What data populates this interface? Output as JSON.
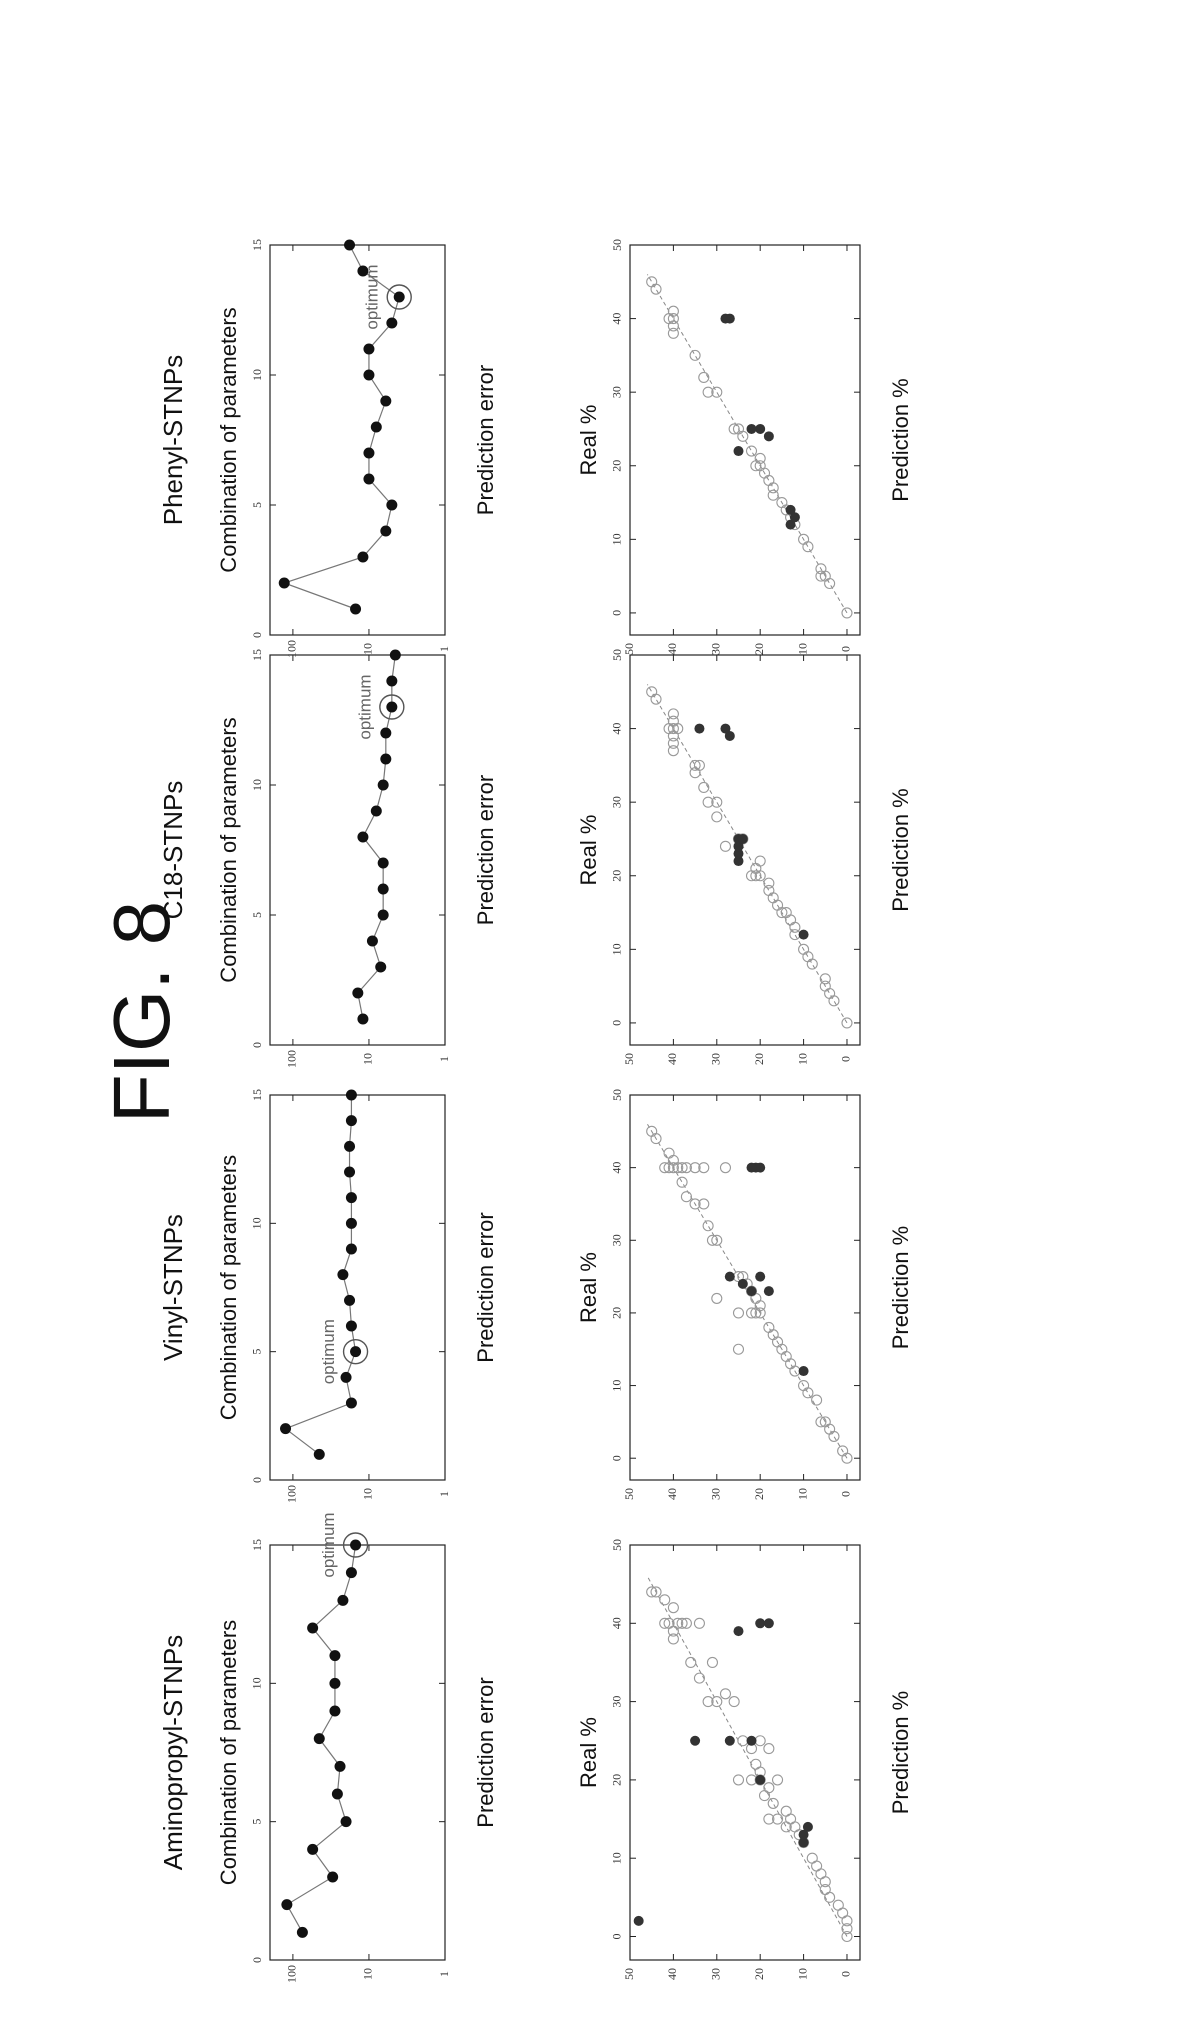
{
  "figure_title": "FIG. 8",
  "optimum_label": "optimum",
  "chart_data": [
    {
      "type": "line",
      "title": "Aminopropyl-STNPs",
      "xlabel": "Combination of parameters",
      "ylabel": "Prediction error",
      "xlim": [
        0,
        15
      ],
      "ylim": [
        1,
        200
      ],
      "yscale": "log",
      "xticks": [
        "0",
        "5",
        "10",
        "15"
      ],
      "yticks": [
        "1",
        "10",
        "100"
      ],
      "x": [
        1,
        2,
        3,
        4,
        5,
        6,
        7,
        8,
        9,
        10,
        11,
        12,
        13,
        14,
        15
      ],
      "y": [
        75,
        120,
        30,
        55,
        20,
        26,
        24,
        45,
        28,
        28,
        28,
        55,
        22,
        17,
        15
      ],
      "optimum_x": 15
    },
    {
      "type": "line",
      "title": "Vinyl-STNPs",
      "xlabel": "Combination of parameters",
      "ylabel": "Prediction error",
      "xlim": [
        0,
        15
      ],
      "ylim": [
        1,
        200
      ],
      "yscale": "log",
      "xticks": [
        "0",
        "5",
        "10",
        "15"
      ],
      "yticks": [
        "1",
        "10",
        "100"
      ],
      "x": [
        1,
        2,
        3,
        4,
        5,
        6,
        7,
        8,
        9,
        10,
        11,
        12,
        13,
        14,
        15
      ],
      "y": [
        45,
        125,
        17,
        20,
        15,
        17,
        18,
        22,
        17,
        17,
        17,
        18,
        18,
        17,
        17
      ],
      "optimum_x": 5
    },
    {
      "type": "line",
      "title": "C18-STNPs",
      "xlabel": "Combination of parameters",
      "ylabel": "Prediction error",
      "xlim": [
        0,
        15
      ],
      "ylim": [
        1,
        200
      ],
      "yscale": "log",
      "xticks": [
        "0",
        "5",
        "10",
        "15"
      ],
      "yticks": [
        "1",
        "10",
        "100"
      ],
      "x": [
        1,
        2,
        3,
        4,
        5,
        6,
        7,
        8,
        9,
        10,
        11,
        12,
        13,
        14,
        15
      ],
      "y": [
        12,
        14,
        7,
        9,
        6.5,
        6.5,
        6.5,
        12,
        8,
        6.5,
        6,
        6,
        5,
        5,
        4.5
      ],
      "optimum_x": 13
    },
    {
      "type": "line",
      "title": "Phenyl-STNPs",
      "xlabel": "Combination of parameters",
      "ylabel": "Prediction error",
      "xlim": [
        0,
        15
      ],
      "ylim": [
        1,
        200
      ],
      "yscale": "log",
      "xticks": [
        "0",
        "5",
        "10",
        "15"
      ],
      "yticks": [
        "1",
        "10",
        "100"
      ],
      "x": [
        1,
        2,
        3,
        4,
        5,
        6,
        7,
        8,
        9,
        10,
        11,
        12,
        13,
        14,
        15
      ],
      "y": [
        15,
        130,
        12,
        6,
        5,
        10,
        10,
        8,
        6,
        10,
        10,
        5,
        4,
        12,
        18
      ],
      "optimum_x": 13
    },
    {
      "type": "scatter",
      "xlabel": "Real %",
      "ylabel": "Prediction %",
      "xlim": [
        -3,
        50
      ],
      "ylim": [
        -3,
        50
      ],
      "xticks": [
        "0",
        "10",
        "20",
        "30",
        "40",
        "50"
      ],
      "yticks": [
        "0",
        "10",
        "20",
        "30",
        "40",
        "50"
      ],
      "open_points": [
        [
          0,
          0
        ],
        [
          1,
          0
        ],
        [
          2,
          0
        ],
        [
          3,
          1
        ],
        [
          4,
          2
        ],
        [
          5,
          4
        ],
        [
          6,
          5
        ],
        [
          7,
          5
        ],
        [
          8,
          6
        ],
        [
          9,
          7
        ],
        [
          10,
          8
        ],
        [
          12,
          10
        ],
        [
          13,
          11
        ],
        [
          14,
          12
        ],
        [
          14,
          14
        ],
        [
          15,
          13
        ],
        [
          15,
          16
        ],
        [
          15,
          18
        ],
        [
          16,
          14
        ],
        [
          17,
          17
        ],
        [
          18,
          19
        ],
        [
          19,
          18
        ],
        [
          20,
          16
        ],
        [
          20,
          20
        ],
        [
          20,
          22
        ],
        [
          21,
          20
        ],
        [
          22,
          21
        ],
        [
          24,
          22
        ],
        [
          25,
          24
        ],
        [
          25,
          20
        ],
        [
          24,
          18
        ],
        [
          20,
          25
        ],
        [
          30,
          26
        ],
        [
          30,
          30
        ],
        [
          30,
          32
        ],
        [
          31,
          28
        ],
        [
          33,
          34
        ],
        [
          35,
          36
        ],
        [
          35,
          31
        ],
        [
          38,
          40
        ],
        [
          39,
          40
        ],
        [
          40,
          41
        ],
        [
          40,
          42
        ],
        [
          40,
          39
        ],
        [
          40,
          38
        ],
        [
          40,
          37
        ],
        [
          40,
          34
        ],
        [
          42,
          40
        ],
        [
          44,
          44
        ],
        [
          44,
          45
        ],
        [
          43,
          42
        ]
      ],
      "filled_points": [
        [
          2,
          48
        ],
        [
          12,
          10
        ],
        [
          13,
          10
        ],
        [
          14,
          9
        ],
        [
          20,
          20
        ],
        [
          25,
          22
        ],
        [
          25,
          27
        ],
        [
          25,
          35
        ],
        [
          39,
          25
        ],
        [
          40,
          20
        ],
        [
          40,
          18
        ]
      ]
    },
    {
      "type": "scatter",
      "xlabel": "Real %",
      "ylabel": "Prediction %",
      "xlim": [
        -3,
        50
      ],
      "ylim": [
        -3,
        50
      ],
      "xticks": [
        "0",
        "10",
        "20",
        "30",
        "40",
        "50"
      ],
      "yticks": [
        "0",
        "10",
        "20",
        "30",
        "40",
        "50"
      ],
      "open_points": [
        [
          0,
          0
        ],
        [
          1,
          1
        ],
        [
          3,
          3
        ],
        [
          4,
          4
        ],
        [
          5,
          5
        ],
        [
          5,
          6
        ],
        [
          8,
          7
        ],
        [
          9,
          9
        ],
        [
          10,
          10
        ],
        [
          12,
          12
        ],
        [
          13,
          13
        ],
        [
          14,
          14
        ],
        [
          15,
          15
        ],
        [
          16,
          16
        ],
        [
          17,
          17
        ],
        [
          18,
          18
        ],
        [
          20,
          20
        ],
        [
          20,
          21
        ],
        [
          20,
          22
        ],
        [
          21,
          20
        ],
        [
          22,
          21
        ],
        [
          23,
          22
        ],
        [
          24,
          23
        ],
        [
          25,
          25
        ],
        [
          25,
          24
        ],
        [
          15,
          25
        ],
        [
          20,
          25
        ],
        [
          22,
          30
        ],
        [
          30,
          31
        ],
        [
          30,
          30
        ],
        [
          32,
          32
        ],
        [
          35,
          35
        ],
        [
          35,
          33
        ],
        [
          36,
          37
        ],
        [
          38,
          38
        ],
        [
          40,
          39
        ],
        [
          40,
          40
        ],
        [
          40,
          41
        ],
        [
          40,
          42
        ],
        [
          40,
          38
        ],
        [
          40,
          37
        ],
        [
          40,
          35
        ],
        [
          40,
          33
        ],
        [
          40,
          28
        ],
        [
          41,
          40
        ],
        [
          42,
          41
        ],
        [
          44,
          44
        ],
        [
          45,
          45
        ]
      ],
      "filled_points": [
        [
          12,
          10
        ],
        [
          23,
          22
        ],
        [
          24,
          24
        ],
        [
          25,
          27
        ],
        [
          25,
          20
        ],
        [
          23,
          18
        ],
        [
          40,
          20
        ],
        [
          40,
          21
        ],
        [
          40,
          22
        ]
      ]
    },
    {
      "type": "scatter",
      "xlabel": "Real %",
      "ylabel": "Prediction %",
      "xlim": [
        -3,
        50
      ],
      "ylim": [
        -3,
        50
      ],
      "xticks": [
        "0",
        "10",
        "20",
        "30",
        "40",
        "50"
      ],
      "yticks": [
        "0",
        "10",
        "20",
        "30",
        "40",
        "50"
      ],
      "open_points": [
        [
          0,
          0
        ],
        [
          3,
          3
        ],
        [
          4,
          4
        ],
        [
          5,
          5
        ],
        [
          6,
          5
        ],
        [
          8,
          8
        ],
        [
          9,
          9
        ],
        [
          10,
          10
        ],
        [
          12,
          12
        ],
        [
          13,
          12
        ],
        [
          14,
          13
        ],
        [
          15,
          14
        ],
        [
          15,
          15
        ],
        [
          16,
          16
        ],
        [
          17,
          17
        ],
        [
          18,
          18
        ],
        [
          19,
          18
        ],
        [
          20,
          20
        ],
        [
          20,
          21
        ],
        [
          20,
          22
        ],
        [
          21,
          21
        ],
        [
          22,
          20
        ],
        [
          25,
          25
        ],
        [
          25,
          24
        ],
        [
          24,
          28
        ],
        [
          28,
          30
        ],
        [
          30,
          30
        ],
        [
          30,
          32
        ],
        [
          32,
          33
        ],
        [
          34,
          35
        ],
        [
          35,
          35
        ],
        [
          35,
          34
        ],
        [
          37,
          40
        ],
        [
          38,
          40
        ],
        [
          39,
          40
        ],
        [
          40,
          40
        ],
        [
          40,
          41
        ],
        [
          40,
          39
        ],
        [
          41,
          40
        ],
        [
          42,
          40
        ],
        [
          44,
          44
        ],
        [
          45,
          45
        ]
      ],
      "filled_points": [
        [
          12,
          10
        ],
        [
          22,
          25
        ],
        [
          23,
          25
        ],
        [
          24,
          25
        ],
        [
          25,
          25
        ],
        [
          25,
          24
        ],
        [
          39,
          27
        ],
        [
          40,
          28
        ],
        [
          40,
          34
        ]
      ]
    },
    {
      "type": "scatter",
      "xlabel": "Real %",
      "ylabel": "Prediction %",
      "xlim": [
        -3,
        50
      ],
      "ylim": [
        -3,
        50
      ],
      "xticks": [
        "0",
        "10",
        "20",
        "30",
        "40",
        "50"
      ],
      "yticks": [
        "0",
        "10",
        "20",
        "30",
        "40",
        "50"
      ],
      "open_points": [
        [
          0,
          0
        ],
        [
          4,
          4
        ],
        [
          5,
          5
        ],
        [
          5,
          6
        ],
        [
          6,
          6
        ],
        [
          9,
          9
        ],
        [
          10,
          10
        ],
        [
          12,
          12
        ],
        [
          13,
          13
        ],
        [
          14,
          14
        ],
        [
          15,
          15
        ],
        [
          16,
          17
        ],
        [
          17,
          17
        ],
        [
          18,
          18
        ],
        [
          19,
          19
        ],
        [
          20,
          20
        ],
        [
          20,
          21
        ],
        [
          21,
          20
        ],
        [
          22,
          22
        ],
        [
          24,
          24
        ],
        [
          25,
          25
        ],
        [
          25,
          26
        ],
        [
          30,
          30
        ],
        [
          30,
          32
        ],
        [
          32,
          33
        ],
        [
          35,
          35
        ],
        [
          38,
          40
        ],
        [
          39,
          40
        ],
        [
          40,
          40
        ],
        [
          40,
          41
        ],
        [
          41,
          40
        ],
        [
          44,
          44
        ],
        [
          45,
          45
        ]
      ],
      "filled_points": [
        [
          12,
          13
        ],
        [
          13,
          12
        ],
        [
          14,
          13
        ],
        [
          22,
          25
        ],
        [
          24,
          18
        ],
        [
          25,
          20
        ],
        [
          25,
          22
        ],
        [
          40,
          27
        ],
        [
          40,
          28
        ]
      ]
    }
  ]
}
